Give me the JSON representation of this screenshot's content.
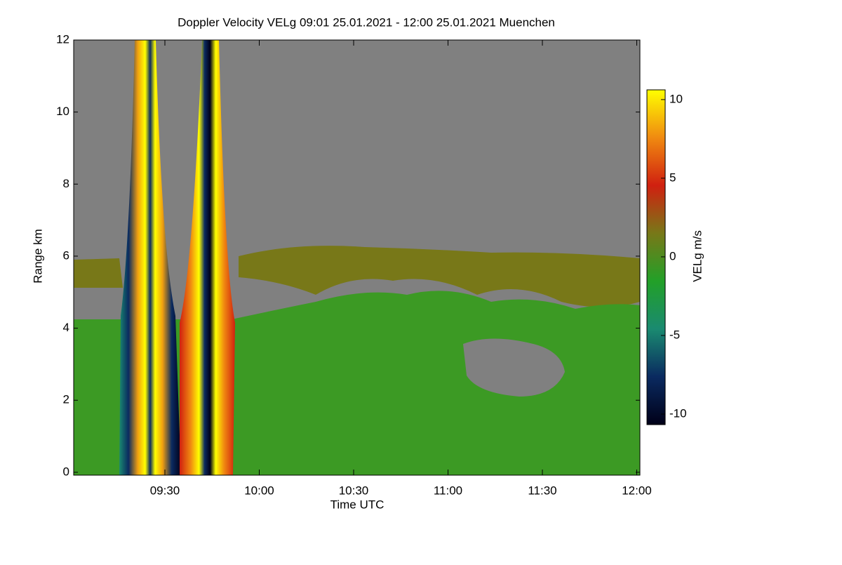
{
  "chart_data": {
    "type": "heatmap",
    "title": "Doppler Velocity VELg   09:01 25.01.2021 - 12:00 25.01.2021 Muenchen",
    "x_label": "Time UTC",
    "y_label": "Range km",
    "xlim": [
      9.0167,
      12.0167
    ],
    "xticks": [
      {
        "value": 9.5,
        "label": "09:30"
      },
      {
        "value": 10,
        "label": "10:00"
      },
      {
        "value": 10.5,
        "label": "10:30"
      },
      {
        "value": 11,
        "label": "11:00"
      },
      {
        "value": 11.5,
        "label": "11:30"
      },
      {
        "value": 12,
        "label": "12:00"
      }
    ],
    "ylim": [
      -0.08,
      12
    ],
    "yticks": [
      0,
      2,
      4,
      6,
      8,
      10,
      12
    ],
    "colorbar": {
      "label": "VELg m/s",
      "lim": [
        -10.67,
        10.62
      ],
      "ticks": [
        -10,
        -5,
        0,
        5,
        10
      ],
      "colors": [
        "#000018",
        "#0a2a60",
        "#1a8a70",
        "#22a028",
        "#787818",
        "#d02010",
        "#f08a10",
        "#ffff00"
      ]
    }
  }
}
